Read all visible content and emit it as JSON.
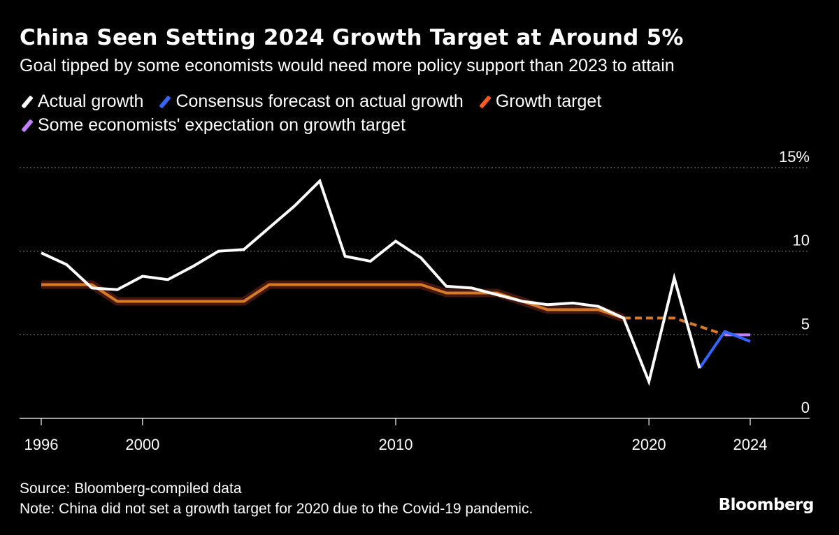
{
  "title": "China Seen Setting 2024 Growth Target at Around 5%",
  "subtitle": "Goal tipped by some economists would need more policy support than 2023 to attain",
  "legend": [
    {
      "label": "Actual growth",
      "color": "#ffffff"
    },
    {
      "label": "Consensus forecast on actual growth",
      "color": "#3366ff"
    },
    {
      "label": "Growth target",
      "color": "#ff5a1f"
    },
    {
      "label": "Some economists' expectation on growth target",
      "color": "#c080ff"
    }
  ],
  "footer": {
    "source": "Source: Bloomberg-compiled data",
    "note": "Note: China did not set a growth target for 2020 due to the Covid-19 pandemic."
  },
  "brand": "Bloomberg",
  "chart_data": {
    "type": "line",
    "title": "China Seen Setting 2024 Growth Target at Around 5%",
    "xlim": [
      1996,
      2024
    ],
    "ylim": [
      0,
      15
    ],
    "yticks": [
      0,
      5,
      10,
      15
    ],
    "ytick_labels": [
      "0",
      "5",
      "10",
      "15%"
    ],
    "xticks": [
      1996,
      2000,
      2010,
      2020,
      2024
    ],
    "xtick_labels": [
      "1996",
      "2000",
      "2010",
      "2020",
      "2024"
    ],
    "grid": "horizontal dotted",
    "series": [
      {
        "name": "Actual growth",
        "color": "#ffffff",
        "x": [
          1996,
          1997,
          1998,
          1999,
          2000,
          2001,
          2002,
          2003,
          2004,
          2005,
          2006,
          2007,
          2008,
          2009,
          2010,
          2011,
          2012,
          2013,
          2014,
          2015,
          2016,
          2017,
          2018,
          2019,
          2020,
          2021,
          2022
        ],
        "y": [
          9.9,
          9.2,
          7.8,
          7.7,
          8.5,
          8.3,
          9.1,
          10.0,
          10.1,
          11.4,
          12.7,
          14.2,
          9.7,
          9.4,
          10.6,
          9.6,
          7.9,
          7.8,
          7.4,
          7.0,
          6.8,
          6.9,
          6.7,
          6.0,
          2.2,
          8.4,
          3.0
        ]
      },
      {
        "name": "Consensus forecast on actual growth",
        "color": "#3366ff",
        "x": [
          2022,
          2023,
          2024
        ],
        "y": [
          3.0,
          5.2,
          4.6
        ]
      },
      {
        "name": "Growth target",
        "color": "#ff5a1f",
        "x": [
          1996,
          1997,
          1998,
          1999,
          2000,
          2001,
          2002,
          2003,
          2004,
          2005,
          2006,
          2007,
          2008,
          2009,
          2010,
          2011,
          2012,
          2013,
          2014,
          2015,
          2016,
          2017,
          2018,
          2019,
          2021,
          2022,
          2023
        ],
        "y": [
          8,
          8,
          8,
          7,
          7,
          7,
          7,
          7,
          7,
          8,
          8,
          8,
          8,
          8,
          8,
          8,
          7.5,
          7.5,
          7.5,
          7,
          6.5,
          6.5,
          6.5,
          6,
          6,
          5.5,
          5
        ]
      },
      {
        "name": "Some economists' expectation on growth target",
        "color": "#c080ff",
        "x": [
          2023,
          2024
        ],
        "y": [
          5,
          5
        ]
      }
    ]
  }
}
